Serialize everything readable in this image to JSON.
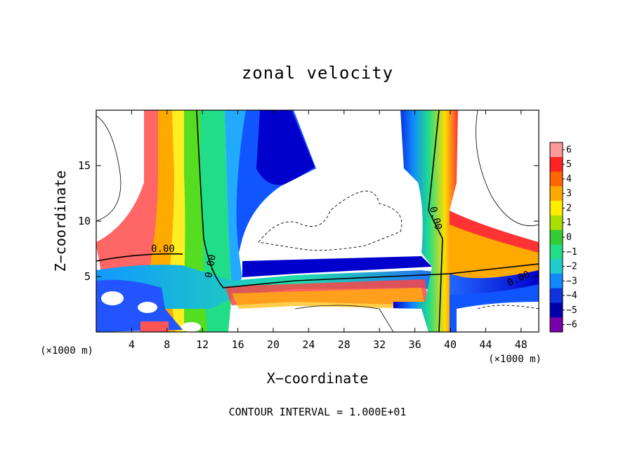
{
  "chart_data": {
    "type": "heatmap",
    "title": "zonal velocity",
    "xlabel": "X−coordinate",
    "ylabel": "Z−coordinate",
    "x_unit_left": "(×1000 m)",
    "x_unit_right": "(×1000 m)",
    "xlim": [
      0,
      50
    ],
    "ylim": [
      0,
      20
    ],
    "x_ticks": [
      4,
      8,
      12,
      16,
      20,
      24,
      28,
      32,
      36,
      40,
      44,
      48
    ],
    "y_ticks": [
      5,
      10,
      15
    ],
    "colorbar": {
      "levels": [
        6,
        5,
        4,
        3,
        2,
        1,
        0,
        -1,
        -2,
        -3,
        -4,
        -5,
        -6
      ],
      "labels": [
        "6",
        "5",
        "4",
        "3",
        "2",
        "1",
        "0",
        "−1",
        "−2",
        "−3",
        "−4",
        "−5",
        "−6"
      ]
    },
    "contour_labels": [
      "0.00",
      "0.00",
      "0.00",
      "0.00"
    ],
    "footer": "CONTOUR INTERVAL = 1.000E+01"
  }
}
